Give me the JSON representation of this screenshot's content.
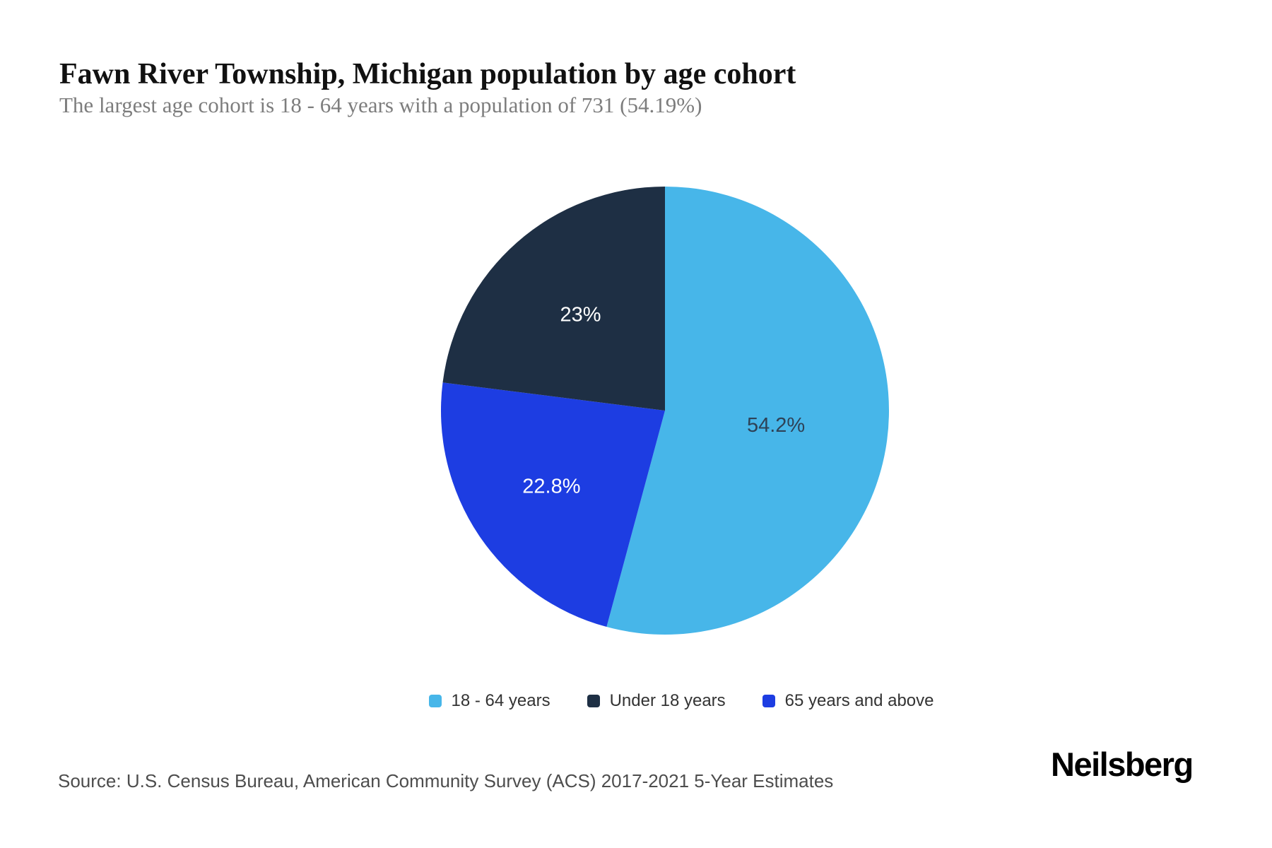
{
  "page": {
    "title": "Fawn River Township, Michigan population by age cohort",
    "subtitle": "The largest age cohort is 18 - 64 years with a population of 731 (54.19%)",
    "source": "Source: U.S. Census Bureau, American Community Survey (ACS) 2017-2021 5-Year Estimates",
    "brand": "Neilsberg"
  },
  "colors": {
    "slice_light_blue": "#47b6e9",
    "slice_navy": "#1e2f44",
    "slice_blue": "#1d3de2",
    "title_text": "#111111",
    "subtitle_text": "#7d7d7d",
    "legend_text": "#333333",
    "source_text": "#4d4d4d",
    "label_on_light": "#2e4257",
    "label_on_dark": "#ffffff"
  },
  "chart_data": {
    "type": "pie",
    "title": "Fawn River Township, Michigan population by age cohort",
    "subtitle": "The largest age cohort is 18 - 64 years with a population of 731 (54.19%)",
    "start_angle_deg": 0,
    "direction": "clockwise",
    "slices": [
      {
        "label": "18 - 64 years",
        "value_pct": 54.19,
        "population": 731,
        "display_label": "54.2%",
        "color": "#47b6e9",
        "label_color": "#2e4257",
        "label_r_frac": 0.5
      },
      {
        "label": "65 years and above",
        "value_pct": 22.8,
        "display_label": "22.8%",
        "color": "#1d3de2",
        "label_color": "#ffffff",
        "label_r_frac": 0.61
      },
      {
        "label": "Under 18 years",
        "value_pct": 23.0,
        "display_label": "23%",
        "color": "#1e2f44",
        "label_color": "#ffffff",
        "label_r_frac": 0.57
      }
    ],
    "legend": [
      {
        "label": "18 - 64 years",
        "color": "#47b6e9"
      },
      {
        "label": "Under 18 years",
        "color": "#1e2f44"
      },
      {
        "label": "65 years and above",
        "color": "#1d3de2"
      }
    ],
    "legend_position": "bottom-center"
  }
}
